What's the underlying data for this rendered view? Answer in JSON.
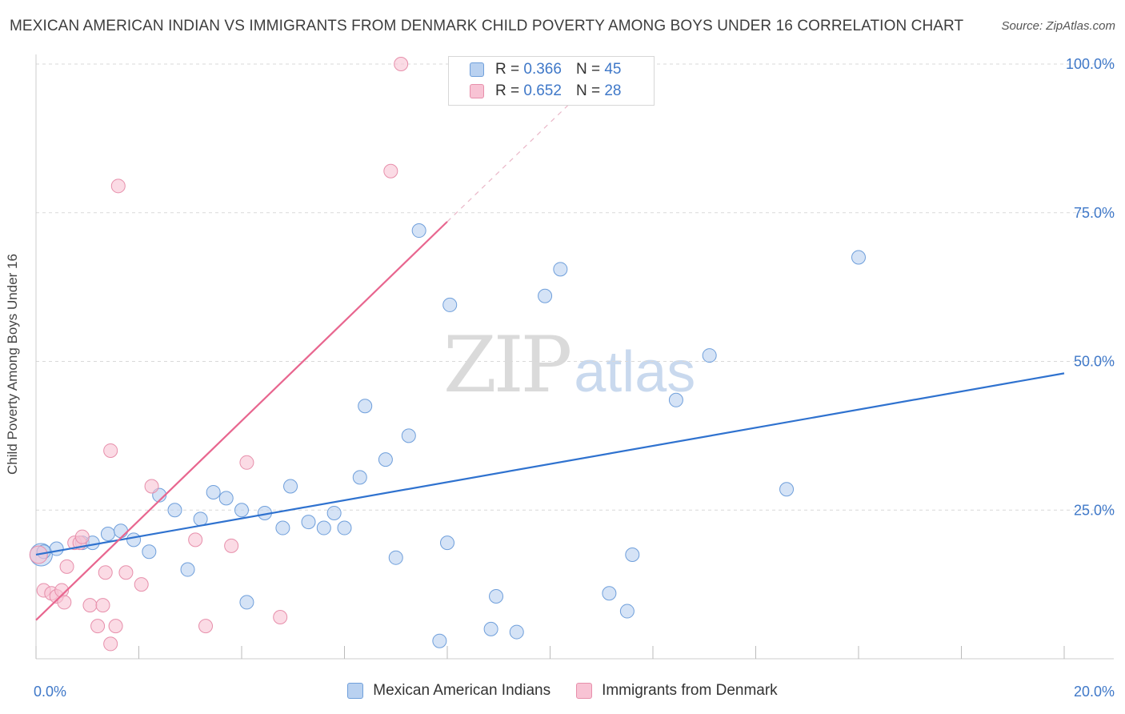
{
  "header": {
    "title": "MEXICAN AMERICAN INDIAN VS IMMIGRANTS FROM DENMARK CHILD POVERTY AMONG BOYS UNDER 16 CORRELATION CHART",
    "source": "Source: ZipAtlas.com"
  },
  "watermark": {
    "zip": "ZIP",
    "atlas": "atlas"
  },
  "legend": {
    "r_label": "R =",
    "n_label": "N =",
    "series": [
      {
        "r": "0.366",
        "n": "45"
      },
      {
        "r": "0.652",
        "n": "28"
      }
    ]
  },
  "chart_data": {
    "type": "scatter",
    "title": "MEXICAN AMERICAN INDIAN VS IMMIGRANTS FROM DENMARK CHILD POVERTY AMONG BOYS UNDER 16 CORRELATION CHART",
    "xlabel": "",
    "ylabel": "Child Poverty Among Boys Under 16",
    "xlim": [
      0,
      20
    ],
    "ylim": [
      0,
      100
    ],
    "x_tick_labels": [
      "0.0%",
      "20.0%"
    ],
    "y_tick_labels": [
      "25.0%",
      "50.0%",
      "75.0%",
      "100.0%"
    ],
    "y_ticks": [
      25,
      50,
      75,
      100
    ],
    "grid": true,
    "legend_position": "bottom",
    "colors": {
      "blue_fill": "#b9d1f0",
      "blue_edge": "#6f9fdb",
      "blue_line": "#2f72cf",
      "pink_fill": "#f8c3d4",
      "pink_edge": "#e78fab",
      "pink_line": "#e8668f",
      "tick_text": "#3f78c8"
    },
    "series": [
      {
        "name": "Mexican American Indians",
        "r": 0.366,
        "n": 45,
        "trend": {
          "x0": 0,
          "y0": 17.5,
          "x1": 20,
          "y1": 48
        },
        "points": [
          [
            0.1,
            17.5
          ],
          [
            0.4,
            18.5
          ],
          [
            0.9,
            19.5
          ],
          [
            1.1,
            19.5
          ],
          [
            1.4,
            21
          ],
          [
            1.65,
            21.5
          ],
          [
            1.9,
            20
          ],
          [
            2.2,
            18
          ],
          [
            2.4,
            27.5
          ],
          [
            2.7,
            25
          ],
          [
            2.95,
            15
          ],
          [
            3.2,
            23.5
          ],
          [
            3.45,
            28
          ],
          [
            3.7,
            27
          ],
          [
            4.0,
            25
          ],
          [
            4.1,
            9.5
          ],
          [
            4.45,
            24.5
          ],
          [
            4.8,
            22
          ],
          [
            4.95,
            29
          ],
          [
            5.3,
            23
          ],
          [
            5.6,
            22
          ],
          [
            5.8,
            24.5
          ],
          [
            6.0,
            22
          ],
          [
            6.3,
            30.5
          ],
          [
            6.4,
            42.5
          ],
          [
            6.8,
            33.5
          ],
          [
            7.0,
            17
          ],
          [
            7.25,
            37.5
          ],
          [
            7.45,
            72
          ],
          [
            7.85,
            3
          ],
          [
            8.0,
            19.5
          ],
          [
            8.05,
            59.5
          ],
          [
            8.85,
            5
          ],
          [
            8.95,
            10.5
          ],
          [
            9.35,
            4.5
          ],
          [
            9.9,
            61
          ],
          [
            10.2,
            65.5
          ],
          [
            11.15,
            11
          ],
          [
            11.5,
            8
          ],
          [
            11.6,
            17.5
          ],
          [
            12.45,
            43.5
          ],
          [
            13.1,
            51
          ],
          [
            14.6,
            28.5
          ],
          [
            16.0,
            67.5
          ],
          [
            0.15,
            18
          ]
        ]
      },
      {
        "name": "Immigrants from Denmark",
        "r": 0.652,
        "n": 28,
        "trend": {
          "x0": 0,
          "y0": 6.5,
          "x1": 8.0,
          "y1": 73.5
        },
        "trend_dashed": {
          "x0": 8.0,
          "y0": 73.5,
          "x1": 10.4,
          "y1": 93.5
        },
        "points": [
          [
            0.05,
            17.5
          ],
          [
            0.15,
            11.5
          ],
          [
            0.3,
            11
          ],
          [
            0.4,
            10.5
          ],
          [
            0.5,
            11.5
          ],
          [
            0.55,
            9.5
          ],
          [
            0.6,
            15.5
          ],
          [
            0.75,
            19.5
          ],
          [
            0.85,
            19.5
          ],
          [
            0.9,
            20.5
          ],
          [
            1.05,
            9
          ],
          [
            1.2,
            5.5
          ],
          [
            1.3,
            9
          ],
          [
            1.35,
            14.5
          ],
          [
            1.45,
            35
          ],
          [
            1.55,
            5.5
          ],
          [
            1.6,
            79.5
          ],
          [
            1.75,
            14.5
          ],
          [
            2.05,
            12.5
          ],
          [
            2.25,
            29
          ],
          [
            3.1,
            20
          ],
          [
            3.3,
            5.5
          ],
          [
            3.8,
            19
          ],
          [
            4.1,
            33
          ],
          [
            4.75,
            7
          ],
          [
            6.9,
            82
          ],
          [
            7.1,
            100
          ],
          [
            1.45,
            2.5
          ]
        ]
      }
    ]
  }
}
